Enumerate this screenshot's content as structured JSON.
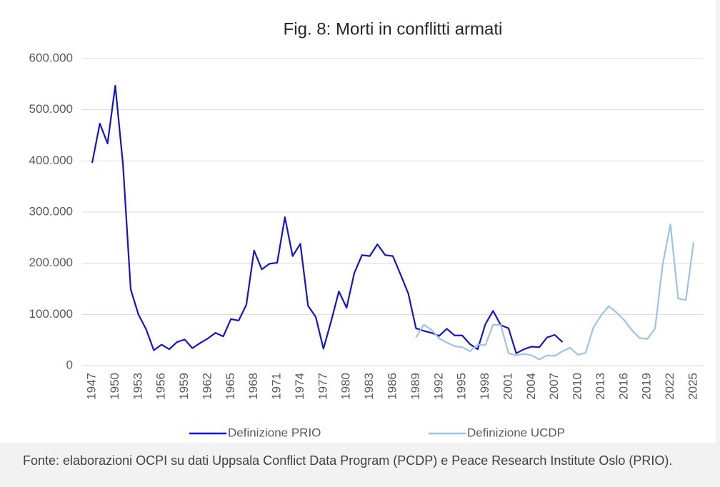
{
  "chart_data": {
    "type": "line",
    "title": "Fig. 8: Morti in conflitti armati",
    "source": "Fonte: elaborazioni OCPI su dati Uppsala Conflict Data Program (PCDP) e Peace Research Institute Oslo (PRIO).",
    "x": [
      1947,
      1948,
      1949,
      1950,
      1951,
      1952,
      1953,
      1954,
      1955,
      1956,
      1957,
      1958,
      1959,
      1960,
      1961,
      1962,
      1963,
      1964,
      1965,
      1966,
      1967,
      1968,
      1969,
      1970,
      1971,
      1972,
      1973,
      1974,
      1975,
      1976,
      1977,
      1978,
      1979,
      1980,
      1981,
      1982,
      1983,
      1984,
      1985,
      1986,
      1987,
      1988,
      1989,
      1990,
      1991,
      1992,
      1993,
      1994,
      1995,
      1996,
      1997,
      1998,
      1999,
      2000,
      2001,
      2002,
      2003,
      2004,
      2005,
      2006,
      2007,
      2008,
      2009,
      2010,
      2011,
      2012,
      2013,
      2014,
      2015,
      2016,
      2017,
      2018,
      2019,
      2020,
      2021,
      2022,
      2023,
      2024,
      2025
    ],
    "xlim": [
      1947,
      2025
    ],
    "xticks": [
      1947,
      1950,
      1953,
      1956,
      1959,
      1962,
      1965,
      1968,
      1971,
      1974,
      1977,
      1980,
      1983,
      1986,
      1989,
      1992,
      1995,
      1998,
      2001,
      2004,
      2007,
      2010,
      2013,
      2016,
      2019,
      2022,
      2025
    ],
    "ylim": [
      0,
      600000
    ],
    "yticks": [
      0,
      {
        "value": 100000,
        "label": "100.000"
      },
      {
        "value": 200000,
        "label": "200.000"
      },
      {
        "value": 300000,
        "label": "300.000"
      },
      {
        "value": 400000,
        "label": "400.000"
      },
      {
        "value": 500000,
        "label": "500.000"
      },
      {
        "value": 600000,
        "label": "600.000"
      }
    ],
    "grid": true,
    "legend": "bottom",
    "series": [
      {
        "name": "Definizione PRIO",
        "color": "#1414cc",
        "values": [
          396000,
          473000,
          434000,
          547000,
          393000,
          149000,
          100000,
          71000,
          30000,
          41000,
          32000,
          46000,
          51000,
          34000,
          44000,
          53000,
          64000,
          57000,
          91000,
          88000,
          119000,
          225000,
          188000,
          199000,
          201000,
          290000,
          214000,
          238000,
          117000,
          95000,
          33000,
          87000,
          145000,
          113000,
          181000,
          216000,
          214000,
          237000,
          216000,
          214000,
          178000,
          141000,
          73000,
          68000,
          64000,
          58000,
          72000,
          59000,
          59000,
          42000,
          32000,
          81000,
          107000,
          79000,
          73000,
          24000,
          32000,
          37000,
          36000,
          55000,
          60000,
          46000,
          null,
          null,
          null,
          null,
          null,
          null,
          null,
          null,
          null,
          null,
          null,
          null,
          null,
          null,
          null,
          null,
          null
        ]
      },
      {
        "name": "Definizione UCDP",
        "color": "#9dc3e6",
        "values": [
          null,
          null,
          null,
          null,
          null,
          null,
          null,
          null,
          null,
          null,
          null,
          null,
          null,
          null,
          null,
          null,
          null,
          null,
          null,
          null,
          null,
          null,
          null,
          null,
          null,
          null,
          null,
          null,
          null,
          null,
          null,
          null,
          null,
          null,
          null,
          null,
          null,
          null,
          null,
          null,
          null,
          null,
          55000,
          80000,
          70000,
          53000,
          45000,
          38000,
          36000,
          28000,
          41000,
          40000,
          80000,
          79000,
          24000,
          20000,
          23000,
          20000,
          12000,
          20000,
          19000,
          28000,
          35000,
          21000,
          25000,
          74000,
          98000,
          116000,
          104000,
          89000,
          69000,
          54000,
          52000,
          72000,
          198000,
          276000,
          131000,
          128000,
          241000
        ]
      }
    ]
  }
}
